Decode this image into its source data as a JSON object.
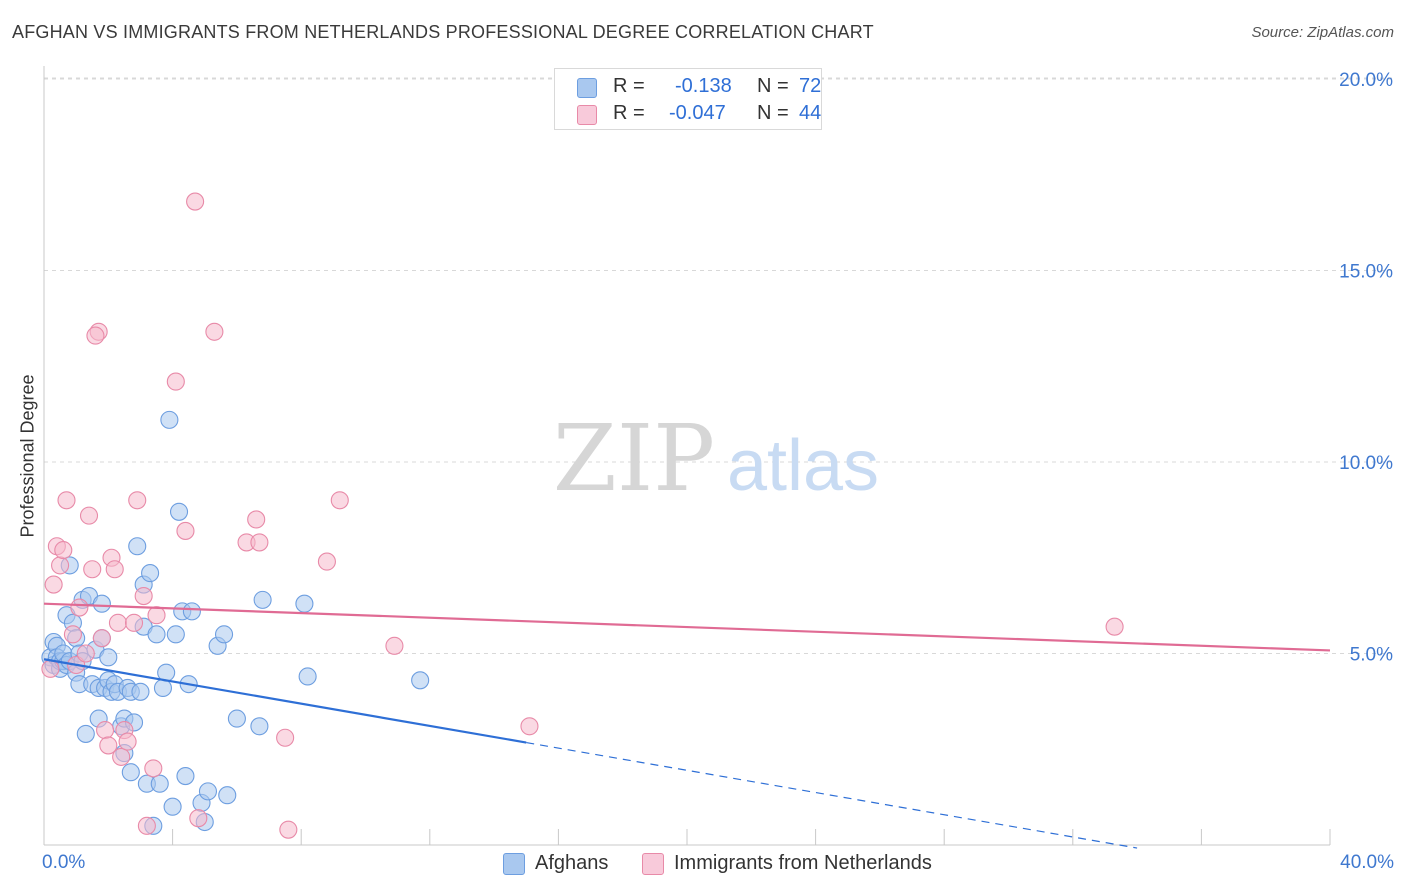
{
  "header": {
    "title": "AFGHAN VS IMMIGRANTS FROM NETHERLANDS PROFESSIONAL DEGREE CORRELATION CHART",
    "source": "Source: ZipAtlas.com"
  },
  "watermark": {
    "zip": "ZIP",
    "atlas": "atlas"
  },
  "legend": {
    "afghans": {
      "r_label": "R =",
      "r_value": "-0.138",
      "n_label": "N =",
      "n_value": "72"
    },
    "netherlands": {
      "r_label": "R =",
      "r_value": "-0.047",
      "n_label": "N =",
      "n_value": "44"
    }
  },
  "bottom_legend": {
    "afghans": "Afghans",
    "netherlands": "Immigrants from Netherlands"
  },
  "colors": {
    "blue_fill": "#a9c8ef",
    "blue_stroke": "#6d9ee0",
    "blue_line": "#2e6fd6",
    "pink_fill": "#f5b9cc",
    "pink_stroke": "#e88aa8",
    "pink_line": "#e06b94",
    "axis_text": "#3f78cf",
    "grid": "#d8d8d8"
  },
  "chart_data": {
    "type": "scatter",
    "title": "AFGHAN VS IMMIGRANTS FROM NETHERLANDS PROFESSIONAL DEGREE CORRELATION CHART",
    "xlabel": "",
    "ylabel": "Professional Degree",
    "xlim": [
      0,
      40
    ],
    "ylim": [
      0,
      20.5
    ],
    "x_tick_labels": [
      "0.0%",
      "40.0%"
    ],
    "y_ticks": [
      5,
      10,
      15,
      20
    ],
    "y_tick_labels": [
      "5.0%",
      "10.0%",
      "15.0%",
      "20.0%"
    ],
    "grid": true,
    "legend_position": "top-center",
    "series": [
      {
        "name": "Afghans",
        "color": "#6d9ee0",
        "points": [
          [
            0.2,
            4.9
          ],
          [
            0.3,
            5.3
          ],
          [
            0.3,
            4.7
          ],
          [
            0.4,
            5.2
          ],
          [
            0.4,
            4.9
          ],
          [
            0.5,
            4.6
          ],
          [
            0.5,
            4.8
          ],
          [
            0.6,
            4.8
          ],
          [
            0.6,
            5.0
          ],
          [
            0.7,
            4.7
          ],
          [
            0.7,
            6.0
          ],
          [
            0.8,
            7.3
          ],
          [
            0.8,
            4.8
          ],
          [
            0.9,
            5.8
          ],
          [
            1.0,
            5.4
          ],
          [
            1.0,
            4.5
          ],
          [
            1.1,
            4.2
          ],
          [
            1.1,
            5.0
          ],
          [
            1.2,
            4.8
          ],
          [
            1.2,
            6.4
          ],
          [
            1.3,
            2.9
          ],
          [
            1.4,
            6.5
          ],
          [
            1.5,
            4.2
          ],
          [
            1.6,
            5.1
          ],
          [
            1.7,
            3.3
          ],
          [
            1.7,
            4.1
          ],
          [
            1.8,
            5.4
          ],
          [
            1.8,
            6.3
          ],
          [
            1.9,
            4.1
          ],
          [
            2.0,
            4.3
          ],
          [
            2.0,
            4.9
          ],
          [
            2.1,
            4.0
          ],
          [
            2.2,
            4.2
          ],
          [
            2.3,
            4.0
          ],
          [
            2.4,
            3.1
          ],
          [
            2.5,
            3.3
          ],
          [
            2.5,
            2.4
          ],
          [
            2.6,
            4.1
          ],
          [
            2.7,
            1.9
          ],
          [
            2.7,
            4.0
          ],
          [
            2.8,
            3.2
          ],
          [
            2.9,
            7.8
          ],
          [
            3.0,
            4.0
          ],
          [
            3.1,
            5.7
          ],
          [
            3.1,
            6.8
          ],
          [
            3.2,
            1.6
          ],
          [
            3.3,
            7.1
          ],
          [
            3.4,
            0.5
          ],
          [
            3.5,
            5.5
          ],
          [
            3.6,
            1.6
          ],
          [
            3.7,
            4.1
          ],
          [
            3.8,
            4.5
          ],
          [
            3.9,
            11.1
          ],
          [
            4.0,
            1.0
          ],
          [
            4.1,
            5.5
          ],
          [
            4.2,
            8.7
          ],
          [
            4.3,
            6.1
          ],
          [
            4.4,
            1.8
          ],
          [
            4.5,
            4.2
          ],
          [
            4.6,
            6.1
          ],
          [
            4.9,
            1.1
          ],
          [
            5.0,
            0.6
          ],
          [
            5.1,
            1.4
          ],
          [
            5.4,
            5.2
          ],
          [
            5.6,
            5.5
          ],
          [
            5.7,
            1.3
          ],
          [
            6.0,
            3.3
          ],
          [
            6.7,
            3.1
          ],
          [
            6.8,
            6.4
          ],
          [
            8.1,
            6.3
          ],
          [
            8.2,
            4.4
          ],
          [
            11.7,
            4.3
          ]
        ]
      },
      {
        "name": "Immigrants from Netherlands",
        "color": "#e88aa8",
        "points": [
          [
            0.2,
            4.6
          ],
          [
            0.3,
            6.8
          ],
          [
            0.4,
            7.8
          ],
          [
            0.5,
            7.3
          ],
          [
            0.6,
            7.7
          ],
          [
            0.7,
            9.0
          ],
          [
            0.9,
            5.5
          ],
          [
            1.0,
            4.7
          ],
          [
            1.1,
            6.2
          ],
          [
            1.3,
            5.0
          ],
          [
            1.4,
            8.6
          ],
          [
            1.5,
            7.2
          ],
          [
            1.7,
            13.4
          ],
          [
            1.8,
            5.4
          ],
          [
            1.9,
            3.0
          ],
          [
            2.0,
            2.6
          ],
          [
            2.1,
            7.5
          ],
          [
            2.2,
            7.2
          ],
          [
            2.3,
            5.8
          ],
          [
            2.4,
            2.3
          ],
          [
            2.5,
            3.0
          ],
          [
            2.6,
            2.7
          ],
          [
            2.8,
            5.8
          ],
          [
            2.9,
            9.0
          ],
          [
            3.1,
            6.5
          ],
          [
            3.2,
            0.5
          ],
          [
            3.4,
            2.0
          ],
          [
            3.5,
            6.0
          ],
          [
            4.1,
            12.1
          ],
          [
            4.4,
            8.2
          ],
          [
            4.7,
            16.8
          ],
          [
            4.8,
            0.7
          ],
          [
            5.3,
            13.4
          ],
          [
            6.3,
            7.9
          ],
          [
            6.6,
            8.5
          ],
          [
            6.7,
            7.9
          ],
          [
            7.5,
            2.8
          ],
          [
            7.6,
            0.4
          ],
          [
            8.8,
            7.4
          ],
          [
            9.2,
            9.0
          ],
          [
            10.9,
            5.2
          ],
          [
            15.1,
            3.1
          ],
          [
            33.3,
            5.7
          ],
          [
            1.6,
            13.3
          ]
        ]
      }
    ],
    "trendlines": [
      {
        "series": "Afghans",
        "x_start": 0,
        "y_start": 4.85,
        "x_solid_end": 15.0,
        "x_end": 34.0,
        "slope": -0.145
      },
      {
        "series": "Immigrants from Netherlands",
        "x_start": 0,
        "y_start": 6.3,
        "x_end": 40,
        "slope": -0.0305
      }
    ]
  }
}
